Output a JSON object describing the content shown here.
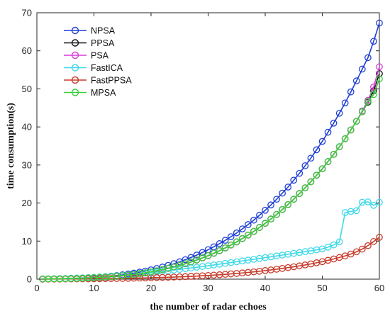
{
  "chart_data": {
    "type": "line",
    "xlabel": "the number of radar echoes",
    "ylabel": "time consumption(s)",
    "xlim": [
      0,
      60
    ],
    "ylim": [
      0,
      70
    ],
    "xticks": [
      "0",
      "10",
      "20",
      "30",
      "40",
      "50",
      "60"
    ],
    "yticks": [
      "0",
      "10",
      "20",
      "30",
      "40",
      "50",
      "60",
      "70"
    ],
    "grid": false,
    "legend_position": "top-left",
    "marker": "circle",
    "x": [
      1,
      2,
      3,
      4,
      5,
      6,
      7,
      8,
      9,
      10,
      11,
      12,
      13,
      14,
      15,
      16,
      17,
      18,
      19,
      20,
      21,
      22,
      23,
      24,
      25,
      26,
      27,
      28,
      29,
      30,
      31,
      32,
      33,
      34,
      35,
      36,
      37,
      38,
      39,
      40,
      41,
      42,
      43,
      44,
      45,
      46,
      47,
      48,
      49,
      50,
      51,
      52,
      53,
      54,
      55,
      56,
      57,
      58,
      59,
      60
    ],
    "series": [
      {
        "name": "NPSA",
        "color": "#1f3fd6",
        "values": [
          0.05,
          0.06,
          0.08,
          0.1,
          0.13,
          0.17,
          0.22,
          0.28,
          0.35,
          0.44,
          0.54,
          0.66,
          0.8,
          0.96,
          1.14,
          1.35,
          1.58,
          1.84,
          2.13,
          2.45,
          2.8,
          3.19,
          3.61,
          4.07,
          4.57,
          5.11,
          5.7,
          6.33,
          7.0,
          7.73,
          8.5,
          9.33,
          10.21,
          11.15,
          12.15,
          13.21,
          14.33,
          15.5,
          16.8,
          18.1,
          19.5,
          21.0,
          22.6,
          24.2,
          26.0,
          27.8,
          29.8,
          31.8,
          34.0,
          36.2,
          38.6,
          41.0,
          43.6,
          46.3,
          49.2,
          52.1,
          55.2,
          58.2,
          62.5,
          67.3
        ]
      },
      {
        "name": "PPSA",
        "color": "#111111",
        "values": [
          0.04,
          0.05,
          0.06,
          0.08,
          0.1,
          0.13,
          0.17,
          0.22,
          0.27,
          0.34,
          0.42,
          0.51,
          0.62,
          0.74,
          0.88,
          1.04,
          1.22,
          1.42,
          1.65,
          1.9,
          2.18,
          2.49,
          2.83,
          3.2,
          3.6,
          4.04,
          4.52,
          5.03,
          5.58,
          6.17,
          6.8,
          7.48,
          8.2,
          8.97,
          9.79,
          10.66,
          11.58,
          12.56,
          13.59,
          14.68,
          15.8,
          17.0,
          18.3,
          19.6,
          21.0,
          22.5,
          24.0,
          25.6,
          27.3,
          29.0,
          30.9,
          32.8,
          34.8,
          36.9,
          39.2,
          41.5,
          44.0,
          46.5,
          49.5,
          54.0
        ]
      },
      {
        "name": "PSA",
        "color": "#d83cd8",
        "values": [
          0.04,
          0.05,
          0.06,
          0.08,
          0.1,
          0.13,
          0.17,
          0.22,
          0.27,
          0.34,
          0.42,
          0.51,
          0.62,
          0.74,
          0.88,
          1.04,
          1.22,
          1.42,
          1.65,
          1.9,
          2.18,
          2.49,
          2.83,
          3.2,
          3.6,
          4.04,
          4.52,
          5.03,
          5.58,
          6.17,
          6.8,
          7.48,
          8.2,
          8.97,
          9.79,
          10.66,
          11.58,
          12.56,
          13.59,
          14.68,
          15.8,
          17.0,
          18.3,
          19.6,
          21.0,
          22.5,
          24.0,
          25.6,
          27.3,
          29.0,
          30.9,
          32.8,
          34.8,
          36.9,
          39.2,
          41.5,
          44.2,
          47.0,
          50.5,
          55.8
        ]
      },
      {
        "name": "FastICA",
        "color": "#3fd8e8",
        "values": [
          0.08,
          0.1,
          0.13,
          0.16,
          0.2,
          0.25,
          0.3,
          0.36,
          0.43,
          0.5,
          0.58,
          0.67,
          0.77,
          0.88,
          1.0,
          1.12,
          1.25,
          1.4,
          1.55,
          1.7,
          1.86,
          2.03,
          2.2,
          2.38,
          2.56,
          2.75,
          2.94,
          3.13,
          3.33,
          3.53,
          3.73,
          3.94,
          4.15,
          4.36,
          4.57,
          4.79,
          5.0,
          5.22,
          5.44,
          5.66,
          5.88,
          6.1,
          6.33,
          6.55,
          6.78,
          7.0,
          7.23,
          7.46,
          7.7,
          7.95,
          8.4,
          9.0,
          9.8,
          17.5,
          17.8,
          18.0,
          20.2,
          20.3,
          19.4,
          20.2
        ]
      },
      {
        "name": "FastPPSA",
        "color": "#c83a2a",
        "values": [
          0.02,
          0.02,
          0.03,
          0.04,
          0.05,
          0.06,
          0.07,
          0.08,
          0.09,
          0.1,
          0.12,
          0.14,
          0.16,
          0.18,
          0.2,
          0.23,
          0.26,
          0.29,
          0.32,
          0.36,
          0.4,
          0.45,
          0.5,
          0.55,
          0.61,
          0.67,
          0.74,
          0.81,
          0.89,
          0.97,
          1.06,
          1.16,
          1.27,
          1.38,
          1.5,
          1.63,
          1.77,
          1.92,
          2.08,
          2.25,
          2.43,
          2.62,
          2.82,
          3.03,
          3.25,
          3.49,
          3.74,
          4.0,
          4.3,
          4.6,
          4.95,
          5.3,
          5.7,
          6.1,
          6.6,
          7.2,
          7.9,
          8.8,
          9.9,
          11.0
        ]
      },
      {
        "name": "MPSA",
        "color": "#3ccf3c",
        "values": [
          0.05,
          0.06,
          0.08,
          0.1,
          0.13,
          0.16,
          0.2,
          0.25,
          0.31,
          0.38,
          0.46,
          0.55,
          0.66,
          0.78,
          0.92,
          1.08,
          1.26,
          1.46,
          1.69,
          1.94,
          2.22,
          2.53,
          2.87,
          3.24,
          3.64,
          4.08,
          4.55,
          5.06,
          5.61,
          6.2,
          6.83,
          7.5,
          8.22,
          8.99,
          9.8,
          10.67,
          11.59,
          12.56,
          13.59,
          14.67,
          15.8,
          17.0,
          18.3,
          19.6,
          21.0,
          22.5,
          24.0,
          25.6,
          27.3,
          29.0,
          30.9,
          32.8,
          34.8,
          36.9,
          39.2,
          41.5,
          44.0,
          46.7,
          48.5,
          52.6
        ]
      }
    ]
  }
}
